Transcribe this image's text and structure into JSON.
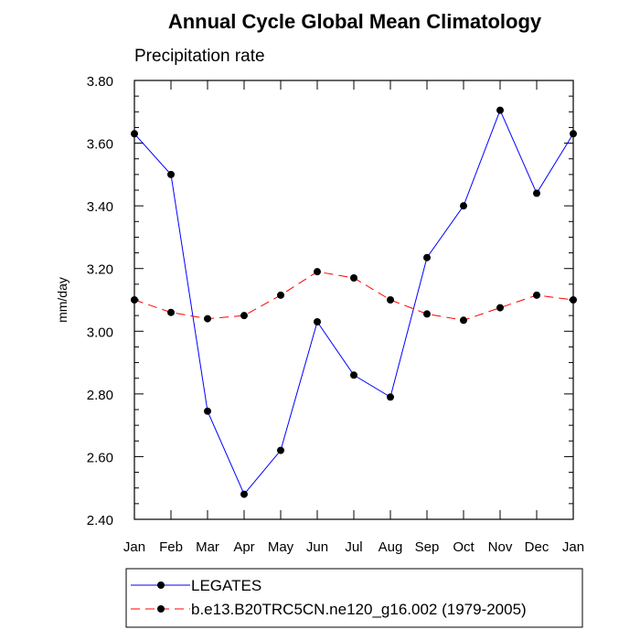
{
  "chart_data": {
    "type": "line",
    "title": "Annual Cycle Global Mean Climatology",
    "subtitle": "Precipitation rate",
    "xlabel": "",
    "ylabel": "mm/day",
    "categories": [
      "Jan",
      "Feb",
      "Mar",
      "Apr",
      "May",
      "Jun",
      "Jul",
      "Aug",
      "Sep",
      "Oct",
      "Nov",
      "Dec",
      "Jan"
    ],
    "ylim": [
      2.4,
      3.8
    ],
    "yticks": [
      "2.40",
      "2.60",
      "2.80",
      "3.00",
      "3.20",
      "3.40",
      "3.60",
      "3.80"
    ],
    "grid": false,
    "legend_position": "bottom",
    "series": [
      {
        "name": "LEGATES",
        "color": "#0000ff",
        "dash": "solid",
        "marker": "filled-circle",
        "values": [
          3.63,
          3.5,
          2.745,
          2.48,
          2.62,
          3.03,
          2.86,
          2.79,
          3.235,
          3.4,
          3.705,
          3.44,
          3.63
        ]
      },
      {
        "name": "b.e13.B20TRC5CN.ne120_g16.002 (1979-2005)",
        "color": "#ff0000",
        "dash": "dashed",
        "marker": "filled-circle",
        "values": [
          3.1,
          3.06,
          3.04,
          3.05,
          3.115,
          3.19,
          3.17,
          3.1,
          3.055,
          3.035,
          3.075,
          3.115,
          3.1
        ]
      }
    ]
  }
}
